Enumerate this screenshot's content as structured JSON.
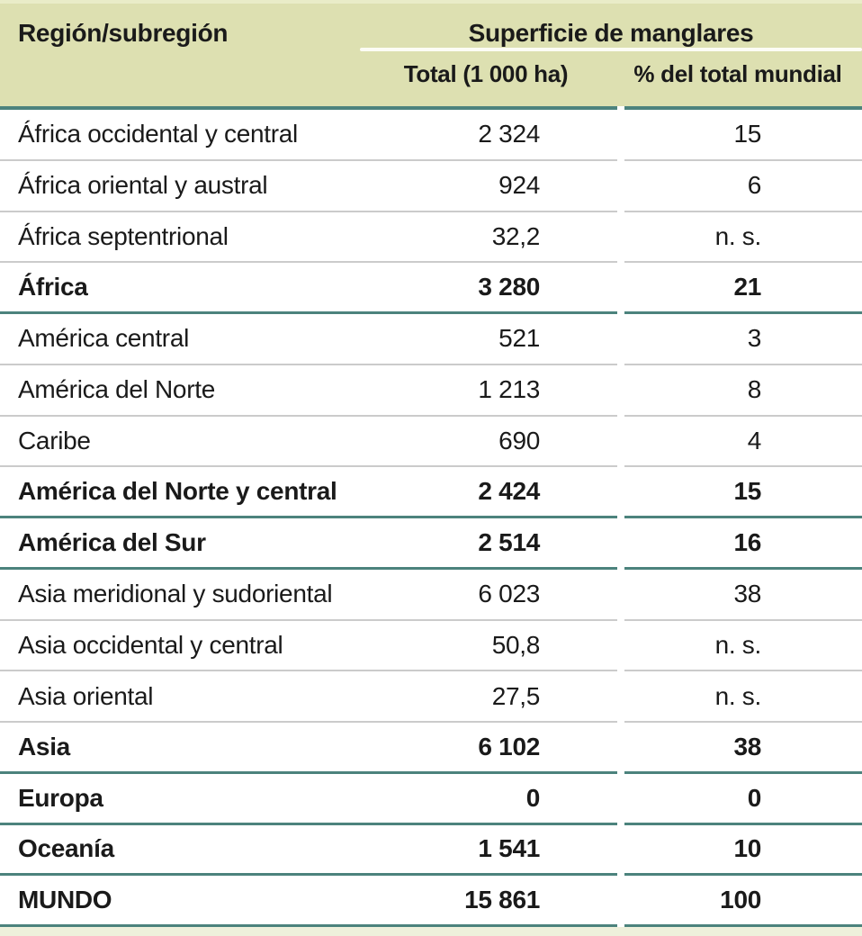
{
  "colors": {
    "header_background": "#dde0b1",
    "accent_teal": "#4c837d",
    "row_divider_gray": "#cbcbcb",
    "footer_strip": "#eef0db",
    "text": "#1a1a1a",
    "header_underline": "#fcfcf5"
  },
  "header": {
    "region_label": "Región/subregión",
    "group_label": "Superficie de manglares",
    "col_total": "Total (1 000 ha)",
    "col_pct": "% del total mundial"
  },
  "table": {
    "rows": [
      {
        "region": "África occidental y central",
        "total": "2 324",
        "pct": "15",
        "emphasis": false,
        "divider": "gray"
      },
      {
        "region": "África oriental y austral",
        "total": "924",
        "pct": "6",
        "emphasis": false,
        "divider": "gray"
      },
      {
        "region": "África septentrional",
        "total": "32,2",
        "pct": "n. s.",
        "emphasis": false,
        "divider": "gray"
      },
      {
        "region": "África",
        "total": "3 280",
        "pct": "21",
        "emphasis": true,
        "divider": "teal"
      },
      {
        "region": "América central",
        "total": "521",
        "pct": "3",
        "emphasis": false,
        "divider": "gray"
      },
      {
        "region": "América del Norte",
        "total": "1 213",
        "pct": "8",
        "emphasis": false,
        "divider": "gray"
      },
      {
        "region": "Caribe",
        "total": "690",
        "pct": "4",
        "emphasis": false,
        "divider": "gray"
      },
      {
        "region": "América del Norte y central",
        "total": "2 424",
        "pct": "15",
        "emphasis": true,
        "divider": "teal"
      },
      {
        "region": "América del Sur",
        "total": "2 514",
        "pct": "16",
        "emphasis": true,
        "divider": "teal"
      },
      {
        "region": "Asia meridional y sudoriental",
        "total": "6 023",
        "pct": "38",
        "emphasis": false,
        "divider": "gray"
      },
      {
        "region": "Asia occidental y central",
        "total": "50,8",
        "pct": "n. s.",
        "emphasis": false,
        "divider": "gray"
      },
      {
        "region": "Asia oriental",
        "total": "27,5",
        "pct": "n. s.",
        "emphasis": false,
        "divider": "gray"
      },
      {
        "region": "Asia",
        "total": "6 102",
        "pct": "38",
        "emphasis": true,
        "divider": "teal"
      },
      {
        "region": "Europa",
        "total": "0",
        "pct": "0",
        "emphasis": true,
        "divider": "teal"
      },
      {
        "region": "Oceanía",
        "total": "1 541",
        "pct": "10",
        "emphasis": true,
        "divider": "teal"
      },
      {
        "region": "MUNDO",
        "total": "15 861",
        "pct": "100",
        "emphasis": true,
        "divider": "teal"
      }
    ]
  },
  "chart_data": {
    "type": "table",
    "title": "Superficie de manglares",
    "columns": [
      "Región/subregión",
      "Total (1 000 ha)",
      "% del total mundial"
    ],
    "rows": [
      [
        "África occidental y central",
        "2 324",
        "15"
      ],
      [
        "África oriental y austral",
        "924",
        "6"
      ],
      [
        "África septentrional",
        "32,2",
        "n. s."
      ],
      [
        "África",
        "3 280",
        "21"
      ],
      [
        "América central",
        "521",
        "3"
      ],
      [
        "América del Norte",
        "1 213",
        "8"
      ],
      [
        "Caribe",
        "690",
        "4"
      ],
      [
        "América del Norte y central",
        "2 424",
        "15"
      ],
      [
        "América del Sur",
        "2 514",
        "16"
      ],
      [
        "Asia meridional y sudoriental",
        "6 023",
        "38"
      ],
      [
        "Asia occidental y central",
        "50,8",
        "n. s."
      ],
      [
        "Asia oriental",
        "27,5",
        "n. s."
      ],
      [
        "Asia",
        "6 102",
        "38"
      ],
      [
        "Europa",
        "0",
        "0"
      ],
      [
        "Oceanía",
        "1 541",
        "10"
      ],
      [
        "MUNDO",
        "15 861",
        "100"
      ]
    ],
    "summary_rows": [
      "África",
      "América del Norte y central",
      "América del Sur",
      "Asia",
      "Europa",
      "Oceanía",
      "MUNDO"
    ]
  }
}
